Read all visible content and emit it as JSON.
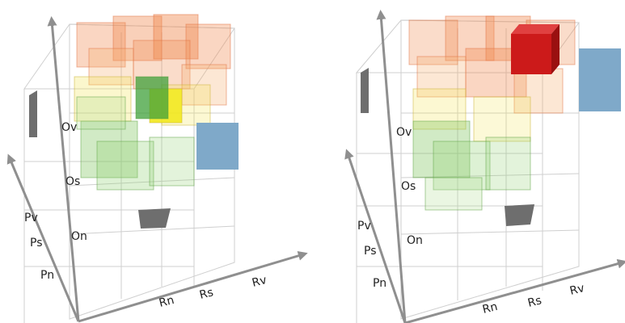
{
  "panels": [
    {
      "o_labels": [
        "Ov",
        "Os",
        "On"
      ],
      "p_labels": [
        "Pv",
        "Ps",
        "Pn"
      ],
      "r_labels": [
        "Rn",
        "Rs",
        "Rv"
      ]
    },
    {
      "o_labels": [
        "Ov",
        "Os",
        "On"
      ],
      "p_labels": [
        "Pv",
        "Ps",
        "Pn"
      ],
      "r_labels": [
        "Rn",
        "Rs",
        "Rv"
      ]
    }
  ],
  "colors": {
    "axis": "#8a8a8a",
    "orange": "#f08a50",
    "yellow": "#f2e24a",
    "green": "#7cc35a",
    "red": "#cc1a1a",
    "blue": "#7fa9c9",
    "gray": "#6e6e6e"
  }
}
